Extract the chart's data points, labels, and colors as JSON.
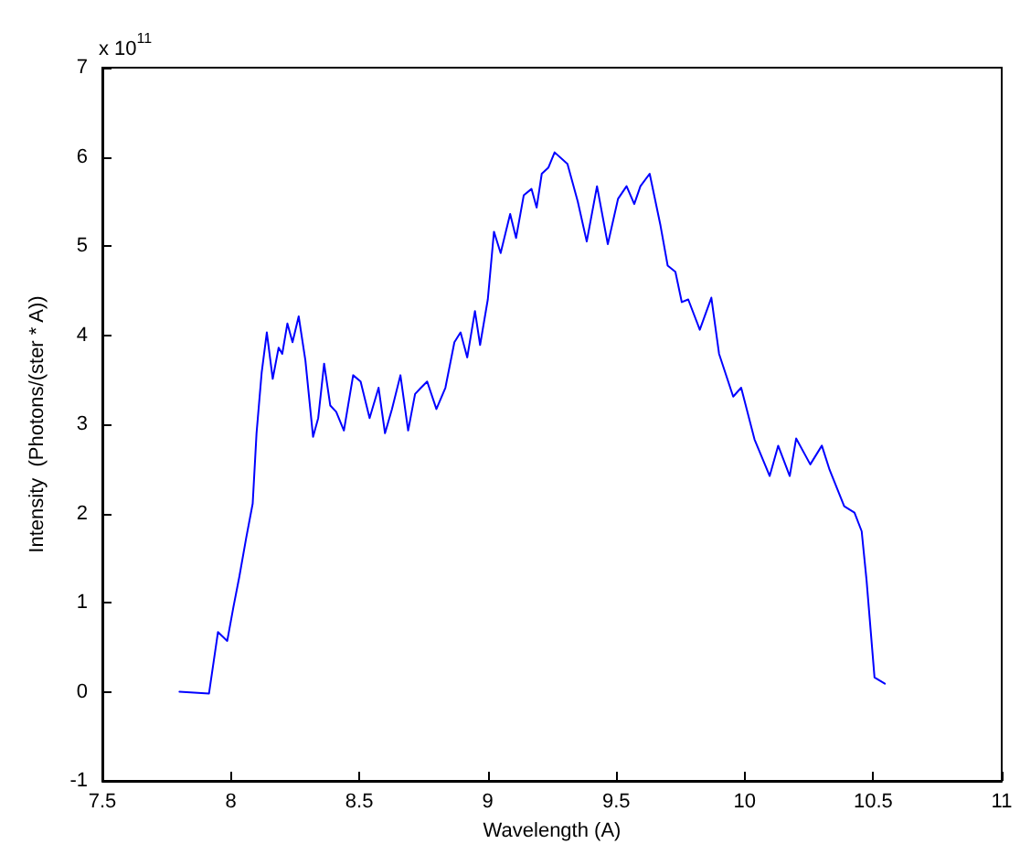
{
  "chart_data": {
    "type": "line",
    "xlabel": "Wavelength (A)",
    "ylabel": "Intensity  (Photons/(ster * A))",
    "annotations": [
      "x 10$^{11}$"
    ],
    "x": [
      7.8,
      7.915,
      7.95,
      7.986,
      8.01,
      8.033,
      8.06,
      8.085,
      8.1,
      8.12,
      8.14,
      8.163,
      8.186,
      8.2,
      8.22,
      8.24,
      8.264,
      8.29,
      8.32,
      8.34,
      8.363,
      8.387,
      8.41,
      8.44,
      8.476,
      8.505,
      8.54,
      8.575,
      8.6,
      8.627,
      8.66,
      8.69,
      8.717,
      8.74,
      8.764,
      8.8,
      8.835,
      8.87,
      8.894,
      8.92,
      8.95,
      8.97,
      9.0,
      9.024,
      9.05,
      9.087,
      9.11,
      9.14,
      9.17,
      9.19,
      9.21,
      9.236,
      9.26,
      9.31,
      9.35,
      9.385,
      9.425,
      9.467,
      9.507,
      9.54,
      9.57,
      9.594,
      9.63,
      9.672,
      9.7,
      9.73,
      9.755,
      9.78,
      9.825,
      9.87,
      9.9,
      9.955,
      9.986,
      10.038,
      10.097,
      10.13,
      10.175,
      10.2,
      10.255,
      10.3,
      10.33,
      10.387,
      10.427,
      10.455,
      10.474,
      10.505,
      10.545
    ],
    "series": [
      {
        "color": "#0000ff",
        "values": [
          0,
          -0.02,
          0.67,
          0.57,
          0.95,
          1.29,
          1.73,
          2.11,
          2.9,
          3.58,
          4.03,
          3.51,
          3.86,
          3.79,
          4.13,
          3.92,
          4.21,
          3.72,
          2.86,
          3.07,
          3.68,
          3.21,
          3.14,
          2.93,
          3.55,
          3.48,
          3.07,
          3.41,
          2.9,
          3.17,
          3.55,
          2.93,
          3.34,
          3.41,
          3.48,
          3.17,
          3.41,
          3.92,
          4.03,
          3.75,
          4.27,
          3.89,
          4.4,
          5.16,
          4.92,
          5.36,
          5.09,
          5.57,
          5.64,
          5.43,
          5.81,
          5.88,
          6.05,
          5.92,
          5.5,
          5.05,
          5.67,
          5.02,
          5.53,
          5.67,
          5.47,
          5.67,
          5.81,
          5.23,
          4.78,
          4.71,
          4.37,
          4.4,
          4.06,
          4.42,
          3.79,
          3.31,
          3.41,
          2.83,
          2.42,
          2.76,
          2.42,
          2.84,
          2.55,
          2.76,
          2.49,
          2.08,
          2.01,
          1.8,
          1.25,
          0.16,
          0.09
        ]
      }
    ],
    "xlim": [
      7.5,
      11
    ],
    "xticks": [
      7.5,
      8,
      8.5,
      9,
      9.5,
      10,
      10.5,
      11
    ],
    "ylim": [
      -1,
      7
    ],
    "yticks": [
      -1,
      0,
      1,
      2,
      3,
      4,
      5,
      6,
      7
    ],
    "grid": false,
    "marker": "none",
    "line_style": "solid"
  }
}
